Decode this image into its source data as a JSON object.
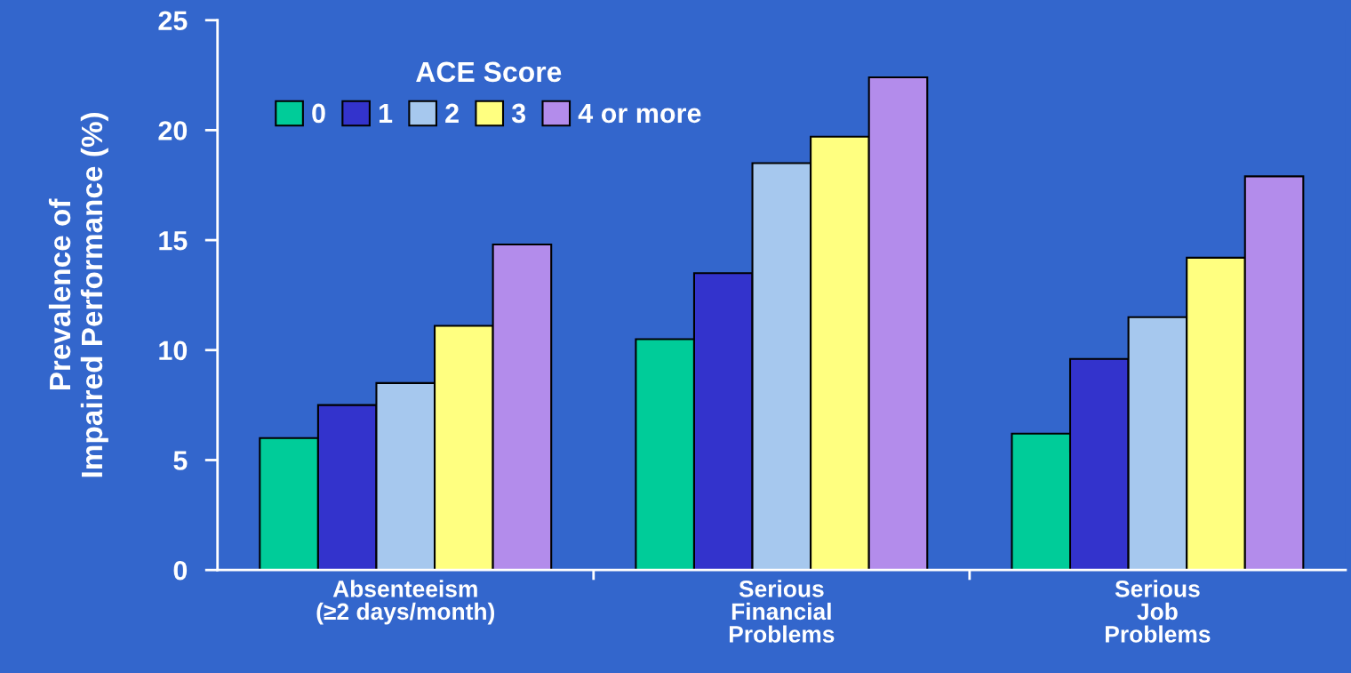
{
  "chart_data": {
    "type": "bar",
    "ylabel": "Prevalence of\nImpaired Performance (%)",
    "legend_title": "ACE Score",
    "legend": "top left",
    "grid": false,
    "categories": [
      "Absenteeism\n(≥2 days/month)",
      "Serious\nFinancial\nProblems",
      "Serious\nJob\nProblems"
    ],
    "series": [
      {
        "name": "0",
        "color": "#00cc99",
        "values": [
          6.0,
          10.5,
          6.2
        ]
      },
      {
        "name": "1",
        "color": "#3333cc",
        "values": [
          7.5,
          13.5,
          9.6
        ]
      },
      {
        "name": "2",
        "color": "#a6c8ee",
        "values": [
          8.5,
          18.5,
          11.5
        ]
      },
      {
        "name": "3",
        "color": "#ffff80",
        "values": [
          11.1,
          19.7,
          14.2
        ]
      },
      {
        "name": "4 or more",
        "color": "#b38ceb",
        "values": [
          14.8,
          22.4,
          17.9
        ]
      }
    ],
    "ylim": [
      0,
      25
    ],
    "yticks": [
      0,
      5,
      10,
      15,
      20,
      25
    ]
  }
}
